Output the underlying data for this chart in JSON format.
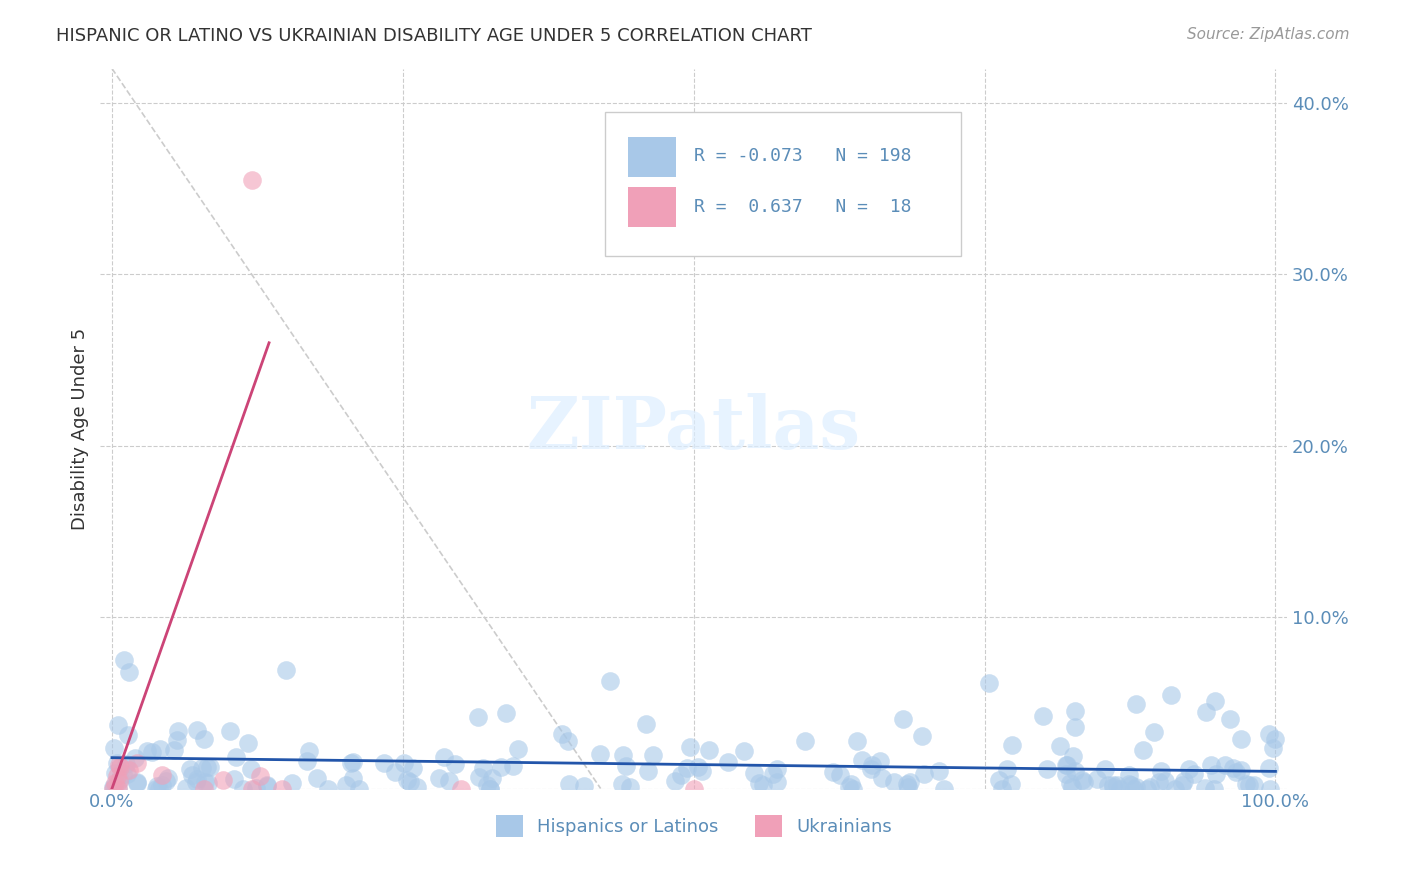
{
  "title": "HISPANIC OR LATINO VS UKRAINIAN DISABILITY AGE UNDER 5 CORRELATION CHART",
  "source": "Source: ZipAtlas.com",
  "xlabel_ticks": [
    "0.0%",
    "100.0%"
  ],
  "ylabel_label": "Disability Age Under 5",
  "ylabel_ticks": [
    "0.0%",
    "10.0%",
    "20.0%",
    "30.0%",
    "40.0%"
  ],
  "legend_entries": [
    {
      "label": "Hispanics or Latinos",
      "color": "#aac4e0",
      "R": "-0.073",
      "N": "198"
    },
    {
      "label": "Ukrainians",
      "color": "#f4a7b9",
      "R": "0.637",
      "N": "18"
    }
  ],
  "watermark": "ZIPatlas",
  "background_color": "#ffffff",
  "blue_color": "#5b8db8",
  "pink_color": "#e07090",
  "axis_color": "#5b8db8",
  "grid_color": "#cccccc",
  "title_color": "#333333",
  "source_color": "#999999",
  "blue_scatter_color": "#a8c8e8",
  "pink_scatter_color": "#f0a0b8",
  "blue_line_color": "#2255aa",
  "pink_line_color": "#cc4477",
  "blue_trend_color": "#bbccdd",
  "xlim": [
    0,
    1
  ],
  "ylim": [
    0,
    0.42
  ],
  "blue_R": -0.073,
  "blue_N": 198,
  "pink_R": 0.637,
  "pink_N": 18,
  "seed": 42
}
